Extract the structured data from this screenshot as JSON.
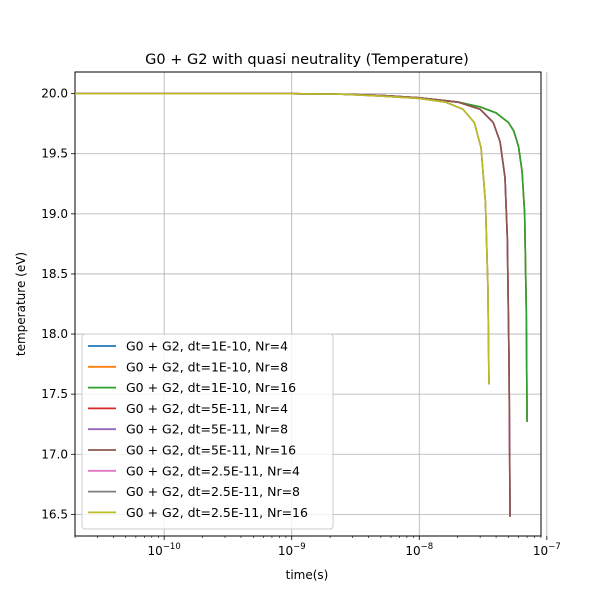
{
  "chart_data": {
    "type": "line",
    "title": "G0 + G2 with quasi neutrality (Temperature)",
    "xlabel": "time(s)",
    "ylabel": "temperature (eV)",
    "xscale": "log",
    "xlim": [
      2e-11,
      9e-08
    ],
    "ylim": [
      16.32,
      20.18
    ],
    "grid": true,
    "legend_position": "lower-left",
    "x_ticks": [
      {
        "value": 1e-10,
        "base": "10",
        "exp": "−10"
      },
      {
        "value": 1e-09,
        "base": "10",
        "exp": "−9"
      },
      {
        "value": 1e-08,
        "base": "10",
        "exp": "−8"
      },
      {
        "value": 1e-07,
        "base": "10",
        "exp": "−7"
      }
    ],
    "y_ticks": [
      "16.5",
      "17.0",
      "17.5",
      "18.0",
      "18.5",
      "19.0",
      "19.5",
      "20.0"
    ],
    "series": [
      {
        "name": "G0 + G2, dt=1E-10, Nr=4",
        "color": "#1f77b4",
        "x": [
          2e-11,
          1e-10,
          1e-09,
          2.5e-09,
          5e-09,
          1e-08,
          2e-08,
          3e-08,
          4e-08,
          5e-08,
          5.5e-08,
          6e-08,
          6.4e-08,
          6.7e-08,
          6.9e-08,
          7e-08
        ],
        "y": [
          20.0,
          20.0,
          20.0,
          19.995,
          19.985,
          19.965,
          19.93,
          19.89,
          19.84,
          19.76,
          19.69,
          19.56,
          19.35,
          19.0,
          18.2,
          17.27
        ]
      },
      {
        "name": "G0 + G2, dt=1E-10, Nr=8",
        "color": "#ff7f0e",
        "x": [
          2e-11,
          1e-10,
          1e-09,
          2.5e-09,
          5e-09,
          1e-08,
          2e-08,
          3e-08,
          4e-08,
          5e-08,
          5.5e-08,
          6e-08,
          6.4e-08,
          6.7e-08,
          6.9e-08,
          7e-08
        ],
        "y": [
          20.0,
          20.0,
          20.0,
          19.995,
          19.985,
          19.965,
          19.93,
          19.89,
          19.84,
          19.76,
          19.69,
          19.56,
          19.35,
          19.0,
          18.2,
          17.27
        ]
      },
      {
        "name": "G0 + G2, dt=1E-10, Nr=16",
        "color": "#2ca02c",
        "x": [
          2e-11,
          1e-10,
          1e-09,
          2.5e-09,
          5e-09,
          1e-08,
          2e-08,
          3e-08,
          4e-08,
          5e-08,
          5.5e-08,
          6e-08,
          6.4e-08,
          6.7e-08,
          6.9e-08,
          7e-08
        ],
        "y": [
          20.0,
          20.0,
          20.0,
          19.995,
          19.985,
          19.965,
          19.93,
          19.89,
          19.84,
          19.76,
          19.69,
          19.56,
          19.35,
          19.0,
          18.2,
          17.27
        ]
      },
      {
        "name": "G0 + G2, dt=5E-11, Nr=4",
        "color": "#d62728",
        "x": [
          2e-11,
          1e-10,
          1e-09,
          2.5e-09,
          5e-09,
          1e-08,
          2e-08,
          3e-08,
          3.8e-08,
          4.3e-08,
          4.7e-08,
          4.9e-08,
          5.05e-08,
          5.15e-08
        ],
        "y": [
          20.0,
          20.0,
          20.0,
          19.995,
          19.985,
          19.965,
          19.93,
          19.87,
          19.76,
          19.6,
          19.3,
          18.8,
          17.8,
          16.48
        ]
      },
      {
        "name": "G0 + G2, dt=5E-11, Nr=8",
        "color": "#9467bd",
        "x": [
          2e-11,
          1e-10,
          1e-09,
          2.5e-09,
          5e-09,
          1e-08,
          2e-08,
          3e-08,
          3.8e-08,
          4.3e-08,
          4.7e-08,
          4.9e-08,
          5.05e-08,
          5.15e-08
        ],
        "y": [
          20.0,
          20.0,
          20.0,
          19.995,
          19.985,
          19.965,
          19.93,
          19.87,
          19.76,
          19.6,
          19.3,
          18.8,
          17.8,
          16.48
        ]
      },
      {
        "name": "G0 + G2, dt=5E-11, Nr=16",
        "color": "#8c564b",
        "x": [
          2e-11,
          1e-10,
          1e-09,
          2.5e-09,
          5e-09,
          1e-08,
          2e-08,
          3e-08,
          3.8e-08,
          4.3e-08,
          4.7e-08,
          4.9e-08,
          5.05e-08,
          5.15e-08
        ],
        "y": [
          20.0,
          20.0,
          20.0,
          19.995,
          19.985,
          19.965,
          19.93,
          19.87,
          19.76,
          19.6,
          19.3,
          18.8,
          17.8,
          16.48
        ]
      },
      {
        "name": "G0 + G2, dt=2.5E-11, Nr=4",
        "color": "#e377c2",
        "x": [
          2e-11,
          1e-10,
          1e-09,
          2.5e-09,
          5e-09,
          1e-08,
          1.6e-08,
          2.2e-08,
          2.7e-08,
          3.05e-08,
          3.3e-08,
          3.45e-08,
          3.52e-08
        ],
        "y": [
          20.0,
          20.0,
          20.0,
          19.995,
          19.98,
          19.96,
          19.93,
          19.87,
          19.76,
          19.55,
          19.1,
          18.4,
          17.58
        ]
      },
      {
        "name": "G0 + G2, dt=2.5E-11, Nr=8",
        "color": "#7f7f7f",
        "x": [
          2e-11,
          1e-10,
          1e-09,
          2.5e-09,
          5e-09,
          1e-08,
          1.6e-08,
          2.2e-08,
          2.7e-08,
          3.05e-08,
          3.3e-08,
          3.45e-08,
          3.52e-08
        ],
        "y": [
          20.0,
          20.0,
          20.0,
          19.995,
          19.98,
          19.96,
          19.93,
          19.87,
          19.76,
          19.55,
          19.1,
          18.4,
          17.58
        ]
      },
      {
        "name": "G0 + G2, dt=2.5E-11, Nr=16",
        "color": "#bcbd22",
        "x": [
          2e-11,
          1e-10,
          1e-09,
          2.5e-09,
          5e-09,
          1e-08,
          1.6e-08,
          2.2e-08,
          2.7e-08,
          3.05e-08,
          3.3e-08,
          3.45e-08,
          3.52e-08
        ],
        "y": [
          20.0,
          20.0,
          20.0,
          19.995,
          19.98,
          19.96,
          19.93,
          19.87,
          19.76,
          19.55,
          19.1,
          18.4,
          17.58
        ]
      }
    ]
  }
}
